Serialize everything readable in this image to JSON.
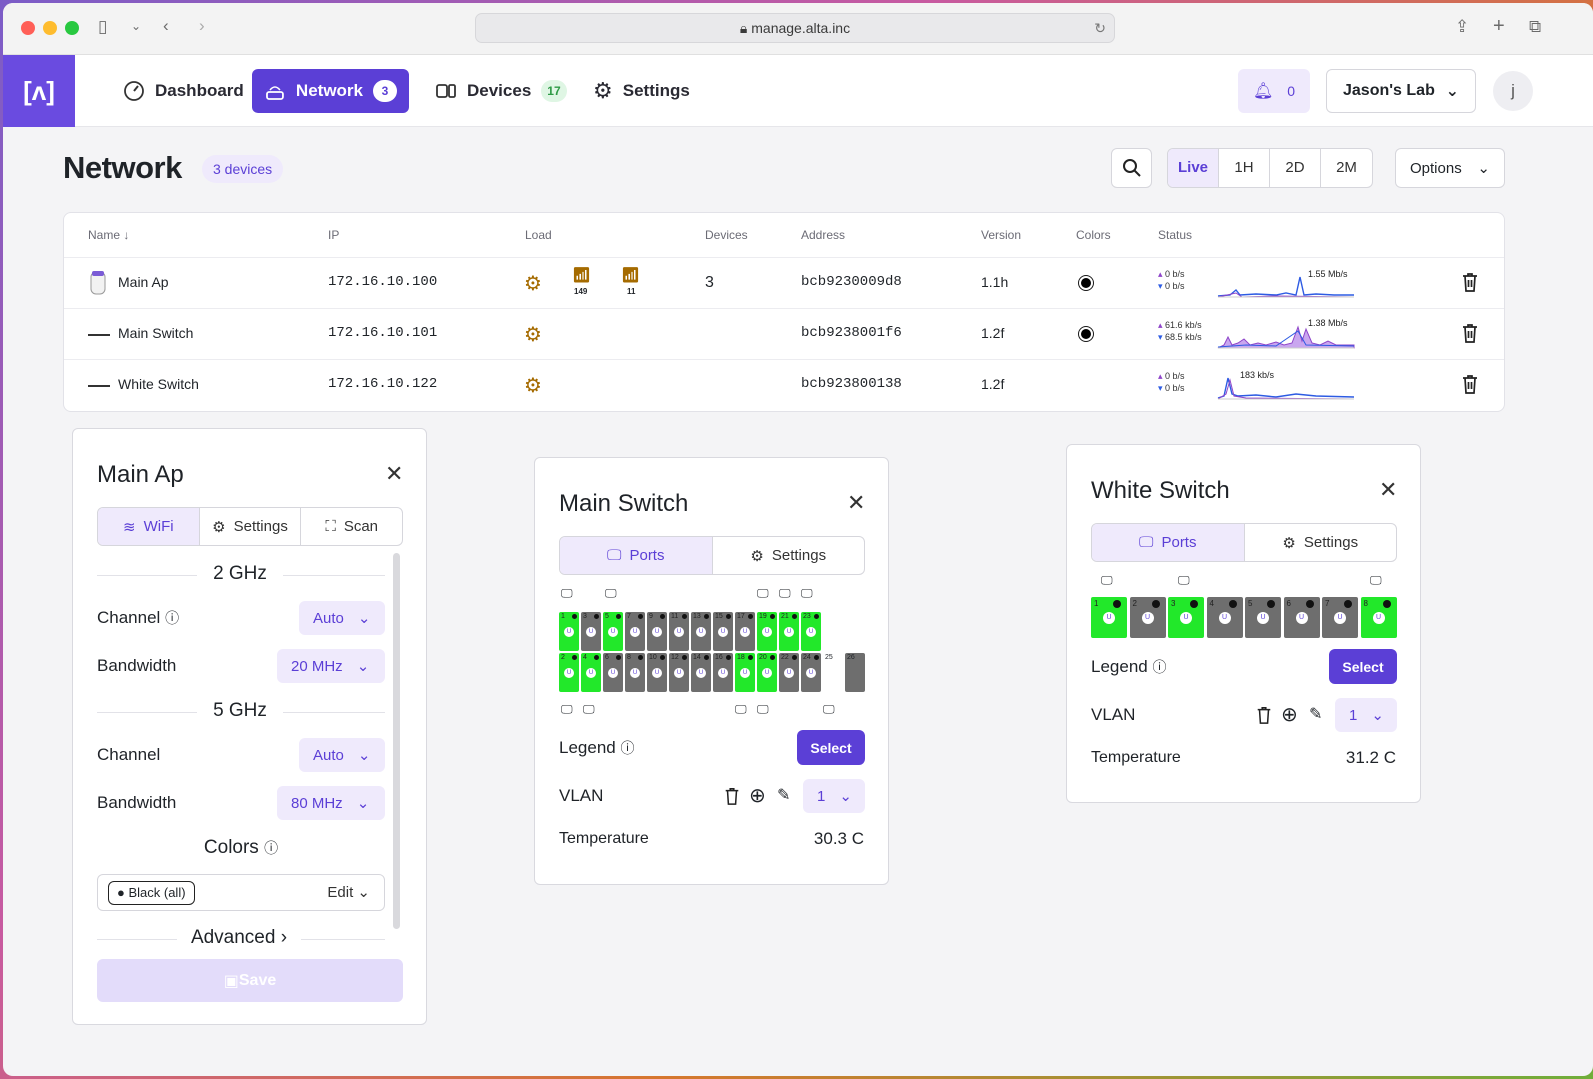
{
  "browser": {
    "url": "manage.alta.inc"
  },
  "nav": {
    "logo": "[ʌ]",
    "items": [
      {
        "label": "Dashboard"
      },
      {
        "label": "Network",
        "badge": "3"
      },
      {
        "label": "Devices",
        "badge": "17"
      },
      {
        "label": "Settings"
      }
    ],
    "alerts": "0",
    "site": "Jason's Lab",
    "user_initial": "j"
  },
  "page": {
    "title": "Network",
    "count": "3 devices",
    "ranges": [
      "Live",
      "1H",
      "2D",
      "2M"
    ],
    "options": "Options"
  },
  "table": {
    "headers": [
      "Name",
      "IP",
      "Load",
      "Devices",
      "Address",
      "Version",
      "Colors",
      "Status"
    ],
    "rows": [
      {
        "name": "Main Ap",
        "ip": "172.16.10.100",
        "load_24": "149",
        "load_5": "11",
        "devices": "3",
        "address": "bcb9230009d8",
        "version": "1.1h",
        "up": "0 b/s",
        "down": "0 b/s",
        "peak": "1.55 Mb/s"
      },
      {
        "name": "Main Switch",
        "ip": "172.16.10.101",
        "devices": "",
        "address": "bcb9238001f6",
        "version": "1.2f",
        "up": "61.6 kb/s",
        "down": "68.5 kb/s",
        "peak": "1.38 Mb/s"
      },
      {
        "name": "White Switch",
        "ip": "172.16.10.122",
        "devices": "",
        "address": "bcb923800138",
        "version": "1.2f",
        "up": "0 b/s",
        "down": "0 b/s",
        "peak": "183 kb/s"
      }
    ]
  },
  "ap_panel": {
    "title": "Main Ap",
    "tabs": [
      "WiFi",
      "Settings",
      "Scan"
    ],
    "band2": "2 GHz",
    "band5": "5 GHz",
    "channel_label": "Channel",
    "bandwidth_label": "Bandwidth",
    "ch2": "Auto",
    "bw2": "20 MHz",
    "ch5": "Auto",
    "bw5": "80 MHz",
    "colors_label": "Colors",
    "color_chip": "Black (all)",
    "edit": "Edit",
    "advanced": "Advanced",
    "save": "Save"
  },
  "ms_panel": {
    "title": "Main Switch",
    "tabs": [
      "Ports",
      "Settings"
    ],
    "legend": "Legend",
    "select": "Select",
    "vlan": "VLAN",
    "vlan_value": "1",
    "temp_label": "Temperature",
    "temp": "30.3 C",
    "top_ports": [
      {
        "n": "1",
        "s": "g"
      },
      {
        "n": "3",
        "s": "d"
      },
      {
        "n": "5",
        "s": "g"
      },
      {
        "n": "7",
        "s": "d"
      },
      {
        "n": "9",
        "s": "d"
      },
      {
        "n": "11",
        "s": "d"
      },
      {
        "n": "13",
        "s": "d"
      },
      {
        "n": "15",
        "s": "d"
      },
      {
        "n": "17",
        "s": "d"
      },
      {
        "n": "19",
        "s": "g"
      },
      {
        "n": "21",
        "s": "g"
      },
      {
        "n": "23",
        "s": "g"
      }
    ],
    "bot_ports": [
      {
        "n": "2",
        "s": "g"
      },
      {
        "n": "4",
        "s": "g"
      },
      {
        "n": "6",
        "s": "d"
      },
      {
        "n": "8",
        "s": "d"
      },
      {
        "n": "10",
        "s": "d"
      },
      {
        "n": "12",
        "s": "d"
      },
      {
        "n": "14",
        "s": "d"
      },
      {
        "n": "16",
        "s": "d"
      },
      {
        "n": "18",
        "s": "g"
      },
      {
        "n": "20",
        "s": "g"
      },
      {
        "n": "22",
        "s": "d"
      },
      {
        "n": "24",
        "s": "d"
      }
    ],
    "sfp": [
      "25",
      "26"
    ]
  },
  "ws_panel": {
    "title": "White Switch",
    "tabs": [
      "Ports",
      "Settings"
    ],
    "legend": "Legend",
    "select": "Select",
    "vlan": "VLAN",
    "vlan_value": "1",
    "temp_label": "Temperature",
    "temp": "31.2 C",
    "ports": [
      {
        "n": "1",
        "s": "g"
      },
      {
        "n": "2",
        "s": "d"
      },
      {
        "n": "3",
        "s": "g"
      },
      {
        "n": "4",
        "s": "d"
      },
      {
        "n": "5",
        "s": "d"
      },
      {
        "n": "6",
        "s": "d"
      },
      {
        "n": "7",
        "s": "d"
      },
      {
        "n": "8",
        "s": "g"
      }
    ]
  },
  "colors": {
    "accent": "#5b3fd6",
    "port_active": "#22e82a",
    "port_idle": "#6e6e6e",
    "spark_up": "#8e44c9",
    "spark_down": "#2d5be3"
  }
}
